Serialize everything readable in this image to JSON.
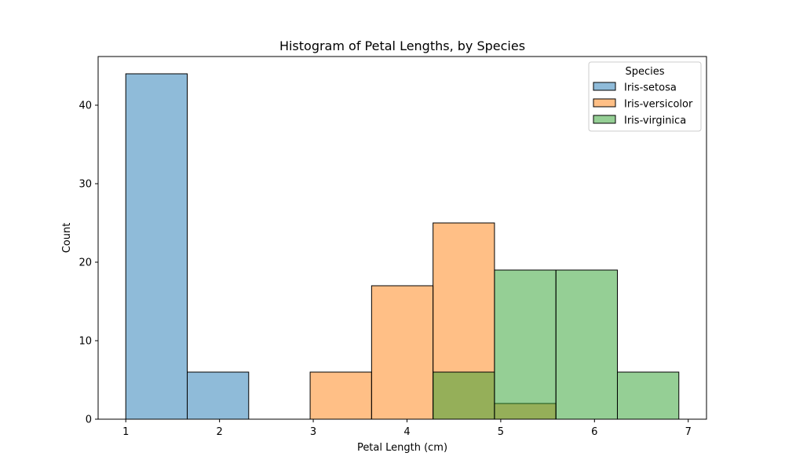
{
  "chart_data": {
    "type": "bar",
    "subtype": "histogram",
    "title": "Histogram of Petal Lengths, by Species",
    "xlabel": "Petal Length (cm)",
    "ylabel": "Count",
    "xlim": [
      0.705,
      7.195
    ],
    "ylim": [
      0,
      46.2
    ],
    "x_ticks": [
      1,
      2,
      3,
      4,
      5,
      6,
      7
    ],
    "y_ticks": [
      0,
      10,
      20,
      30,
      40
    ],
    "bin_edges": [
      1.0,
      1.6556,
      2.3111,
      2.9667,
      3.6222,
      4.2778,
      4.9333,
      5.5889,
      6.2444,
      6.9
    ],
    "grid": false,
    "legend": {
      "title": "Species",
      "position": "top-right"
    },
    "series": [
      {
        "name": "Iris-setosa",
        "color": "#1f77b4",
        "values": [
          44,
          6,
          0,
          0,
          0,
          0,
          0,
          0,
          0
        ]
      },
      {
        "name": "Iris-versicolor",
        "color": "#ff7f0e",
        "values": [
          0,
          0,
          0,
          6,
          17,
          25,
          2,
          0,
          0
        ]
      },
      {
        "name": "Iris-virginica",
        "color": "#2ca02c",
        "values": [
          0,
          0,
          0,
          0,
          0,
          6,
          19,
          19,
          6
        ]
      }
    ]
  }
}
